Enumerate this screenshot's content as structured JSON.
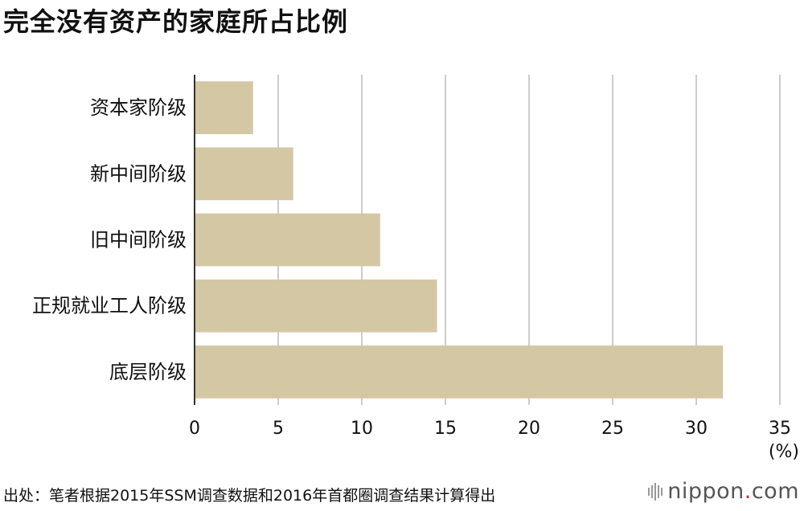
{
  "title": "完全没有资产的家庭所占比例",
  "unit": "(%)",
  "source": "出处：笔者根据2015年SSM调查数据和2016年首都圈调查结果计算得出",
  "brand": {
    "name": "nippon",
    "dot": ".",
    "tld": "com"
  },
  "colors": {
    "bar": "#d4c8a4",
    "grid": "#cccccc",
    "axis": "#333333",
    "text": "#111111"
  },
  "chart_data": {
    "type": "bar",
    "orientation": "horizontal",
    "categories": [
      "资本家阶级",
      "新中间阶级",
      "旧中间阶级",
      "正规就业工人阶级",
      "底层阶级"
    ],
    "values": [
      3.5,
      5.9,
      11.1,
      14.5,
      31.6
    ],
    "xlim": [
      0,
      35
    ],
    "xticks": [
      "0",
      "5",
      "10",
      "15",
      "20",
      "25",
      "30",
      "35"
    ],
    "grid": true,
    "legend": "none"
  }
}
